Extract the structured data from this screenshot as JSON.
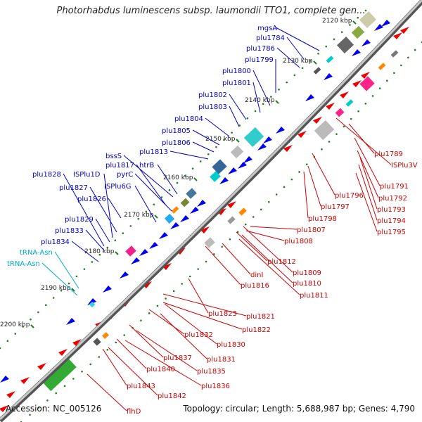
{
  "title": "Photorhabdus luminescens subsp. laumondii TTO1, complete gen...",
  "footer": {
    "accession": "Accession: NC_005126",
    "summary": "Topology: circular; Length: 5,688,987 bp; Genes: 4,790"
  },
  "colors": {
    "forward_label": "#0000cc",
    "reverse_label": "#cc0000",
    "rna_label": "#00aacc",
    "backbone": "#777777",
    "forward_gene": "#0000ee",
    "reverse_gene": "#ee0000",
    "scale_dot": "#208020"
  },
  "kbp_ticks": [
    "2120 kbp",
    "2130 kbp",
    "2140 kbp",
    "2150 kbp",
    "2160 kbp",
    "2170 kbp",
    "2180 kbp",
    "2190 kbp",
    "2200 kbp"
  ],
  "upper_labels": [
    "mgsA",
    "plu1784",
    "plu1786",
    "plu1799",
    "plu1800",
    "plu1801",
    "plu1802",
    "plu1803",
    "plu1804",
    "plu1805",
    "plu1806",
    "bssS",
    "plu1813",
    "plu1817",
    "htrB",
    "plu1828",
    "ISPlu1D",
    "pyrC",
    "plu1827",
    "ISPlu6G",
    "plu1826",
    "plu1829",
    "plu1833",
    "plu1834",
    "tRNA-Asn",
    "tRNA-Asn"
  ],
  "lower_labels": [
    "plu1789",
    "ISPlu3V",
    "plu1791",
    "plu1796",
    "plu1792",
    "plu1797",
    "plu1793",
    "plu1794",
    "plu1798",
    "plu1795",
    "plu1807",
    "plu1808",
    "plu1812",
    "plu1809",
    "dinI",
    "plu1810",
    "plu1816",
    "plu1811",
    "plu1821",
    "plu1823",
    "plu1822",
    "plu1832",
    "plu1830",
    "plu1837",
    "plu1831",
    "plu1840",
    "plu1835",
    "plu1836",
    "plu1843",
    "plu1842",
    "flhD"
  ]
}
